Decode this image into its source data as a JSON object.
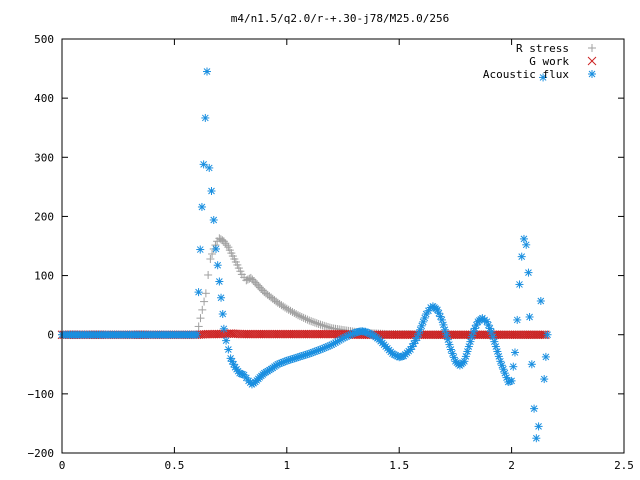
{
  "chart_data": {
    "type": "scatter",
    "title": "m4/n1.5/q2.0/r-+.30-j78/M25.0/256",
    "xlim": [
      0,
      2.5
    ],
    "ylim": [
      -200,
      500
    ],
    "x_ticks": [
      "0",
      "0.5",
      "1",
      "1.5",
      "2",
      "2.5"
    ],
    "y_ticks": [
      "500",
      "400",
      "300",
      "200",
      "100",
      "0",
      "−100",
      "−200"
    ],
    "x_tick_values": [
      0,
      0.5,
      1,
      1.5,
      2,
      2.5
    ],
    "y_tick_values": [
      500,
      400,
      300,
      200,
      100,
      0,
      -100,
      -200
    ],
    "grid": false,
    "legend_position": "top-right",
    "series": [
      {
        "name": "R stress",
        "marker": "plus",
        "color": "#a0a0a0",
        "points": [
          [
            0.0,
            0
          ],
          [
            0.1,
            0
          ],
          [
            0.2,
            0
          ],
          [
            0.3,
            0
          ],
          [
            0.4,
            0
          ],
          [
            0.5,
            0
          ],
          [
            0.6,
            0
          ],
          [
            0.64,
            70
          ],
          [
            0.65,
            101
          ],
          [
            0.66,
            128
          ],
          [
            0.675,
            145
          ],
          [
            0.69,
            158
          ],
          [
            0.7,
            163
          ],
          [
            0.72,
            158
          ],
          [
            0.74,
            148
          ],
          [
            0.76,
            133
          ],
          [
            0.78,
            118
          ],
          [
            0.8,
            102
          ],
          [
            0.82,
            92
          ],
          [
            0.84,
            96
          ],
          [
            0.86,
            88
          ],
          [
            0.88,
            80
          ],
          [
            0.9,
            72
          ],
          [
            0.93,
            63
          ],
          [
            0.96,
            54
          ],
          [
            1.0,
            44
          ],
          [
            1.05,
            33
          ],
          [
            1.1,
            24
          ],
          [
            1.15,
            17
          ],
          [
            1.2,
            11
          ],
          [
            1.25,
            8
          ],
          [
            1.3,
            5
          ],
          [
            1.35,
            3
          ],
          [
            1.4,
            2
          ],
          [
            1.45,
            1
          ],
          [
            1.5,
            1
          ],
          [
            1.6,
            0
          ],
          [
            1.8,
            0
          ],
          [
            2.0,
            0
          ],
          [
            2.15,
            0
          ]
        ]
      },
      {
        "name": "G work",
        "marker": "cross",
        "color": "#cc2222",
        "points": [
          [
            0.0,
            0
          ],
          [
            0.1,
            0
          ],
          [
            0.2,
            0
          ],
          [
            0.3,
            0
          ],
          [
            0.4,
            0
          ],
          [
            0.5,
            0
          ],
          [
            0.6,
            0
          ],
          [
            0.65,
            1
          ],
          [
            0.7,
            1
          ],
          [
            0.75,
            2
          ],
          [
            0.8,
            1
          ],
          [
            0.85,
            1
          ],
          [
            0.9,
            1
          ],
          [
            0.95,
            1
          ],
          [
            1.0,
            1
          ],
          [
            1.05,
            1
          ],
          [
            1.1,
            1
          ],
          [
            1.15,
            1
          ],
          [
            1.2,
            1
          ],
          [
            1.25,
            1
          ],
          [
            1.3,
            0
          ],
          [
            1.35,
            0
          ],
          [
            1.4,
            0
          ],
          [
            1.45,
            0
          ],
          [
            1.5,
            0
          ],
          [
            1.55,
            0
          ],
          [
            1.6,
            0
          ],
          [
            1.65,
            0
          ],
          [
            1.7,
            0
          ],
          [
            1.75,
            0
          ],
          [
            1.8,
            0
          ],
          [
            1.85,
            0
          ],
          [
            1.9,
            0
          ],
          [
            1.95,
            0
          ],
          [
            2.0,
            0
          ],
          [
            2.05,
            0
          ],
          [
            2.1,
            0
          ],
          [
            2.15,
            0
          ]
        ]
      },
      {
        "name": "Acoustic flux",
        "marker": "star",
        "color": "#1a8fe0",
        "points": [
          [
            0.0,
            0
          ],
          [
            0.05,
            0
          ],
          [
            0.1,
            0
          ],
          [
            0.15,
            0
          ],
          [
            0.2,
            0
          ],
          [
            0.25,
            0
          ],
          [
            0.3,
            0
          ],
          [
            0.35,
            0
          ],
          [
            0.4,
            0
          ],
          [
            0.45,
            0
          ],
          [
            0.5,
            0
          ],
          [
            0.55,
            0
          ],
          [
            0.6,
            0
          ],
          [
            0.63,
            288
          ],
          [
            0.645,
            445
          ],
          [
            0.655,
            282
          ],
          [
            0.665,
            243
          ],
          [
            0.675,
            194
          ],
          [
            0.685,
            145
          ],
          [
            0.7,
            90
          ],
          [
            0.715,
            35
          ],
          [
            0.72,
            10
          ],
          [
            0.73,
            -10
          ],
          [
            0.74,
            -25
          ],
          [
            0.75,
            -40
          ],
          [
            0.77,
            -55
          ],
          [
            0.79,
            -65
          ],
          [
            0.81,
            -68
          ],
          [
            0.83,
            -78
          ],
          [
            0.845,
            -84
          ],
          [
            0.86,
            -80
          ],
          [
            0.88,
            -72
          ],
          [
            0.9,
            -65
          ],
          [
            0.93,
            -58
          ],
          [
            0.96,
            -50
          ],
          [
            1.0,
            -44
          ],
          [
            1.05,
            -38
          ],
          [
            1.1,
            -32
          ],
          [
            1.15,
            -25
          ],
          [
            1.2,
            -17
          ],
          [
            1.25,
            -6
          ],
          [
            1.3,
            3
          ],
          [
            1.33,
            6
          ],
          [
            1.35,
            5
          ],
          [
            1.38,
            0
          ],
          [
            1.41,
            -8
          ],
          [
            1.44,
            -20
          ],
          [
            1.47,
            -32
          ],
          [
            1.5,
            -38
          ],
          [
            1.52,
            -36
          ],
          [
            1.55,
            -25
          ],
          [
            1.58,
            -5
          ],
          [
            1.6,
            15
          ],
          [
            1.62,
            35
          ],
          [
            1.64,
            46
          ],
          [
            1.65,
            48
          ],
          [
            1.67,
            42
          ],
          [
            1.69,
            25
          ],
          [
            1.71,
            0
          ],
          [
            1.73,
            -25
          ],
          [
            1.75,
            -45
          ],
          [
            1.77,
            -52
          ],
          [
            1.79,
            -45
          ],
          [
            1.81,
            -20
          ],
          [
            1.83,
            5
          ],
          [
            1.85,
            22
          ],
          [
            1.87,
            28
          ],
          [
            1.89,
            22
          ],
          [
            1.91,
            5
          ],
          [
            1.93,
            -20
          ],
          [
            1.95,
            -45
          ],
          [
            1.97,
            -65
          ],
          [
            1.985,
            -80
          ],
          [
            2.0,
            -78
          ],
          [
            2.015,
            -30
          ],
          [
            2.025,
            25
          ],
          [
            2.035,
            85
          ],
          [
            2.045,
            132
          ],
          [
            2.055,
            162
          ],
          [
            2.065,
            152
          ],
          [
            2.075,
            105
          ],
          [
            2.08,
            30
          ],
          [
            2.09,
            -50
          ],
          [
            2.1,
            -125
          ],
          [
            2.11,
            -175
          ],
          [
            2.12,
            -155
          ],
          [
            2.13,
            57
          ],
          [
            2.14,
            435
          ],
          [
            2.145,
            -75
          ],
          [
            2.16,
            0
          ]
        ]
      }
    ]
  }
}
